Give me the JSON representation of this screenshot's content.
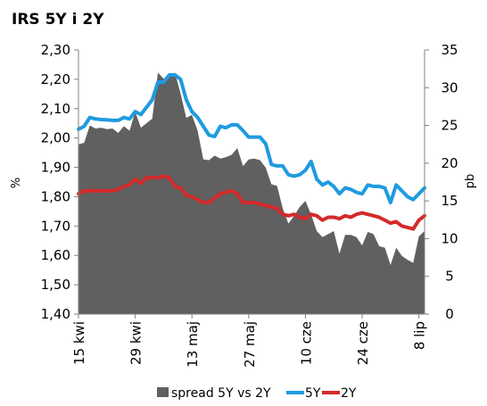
{
  "chart_data": {
    "type": "area+line",
    "title": "IRS 5Y i 2Y",
    "ylabel": "%",
    "y2label": "pb",
    "ylim": [
      1.4,
      2.3
    ],
    "y2lim": [
      0,
      35
    ],
    "yticks": [
      "2,30",
      "2,20",
      "2,10",
      "2,00",
      "1,90",
      "1,80",
      "1,70",
      "1,60",
      "1,50",
      "1,40"
    ],
    "y2ticks": [
      "35",
      "30",
      "25",
      "20",
      "15",
      "10",
      "5",
      "0"
    ],
    "xticks": [
      "15 kwi",
      "29 kwi",
      "13 maj",
      "27 maj",
      "10 cze",
      "24 cze",
      "8 lip"
    ],
    "xtick_index": [
      0,
      10,
      20,
      30,
      40,
      50,
      60
    ],
    "grid": false,
    "legend_position": "bottom",
    "series": [
      {
        "name": "spread 5Y vs 2Y",
        "type": "area",
        "axis": "right",
        "color": "#606060",
        "values": [
          22.5,
          22.7,
          25.0,
          24.6,
          24.7,
          24.5,
          24.6,
          24.0,
          24.9,
          24.3,
          26.8,
          24.7,
          25.3,
          25.9,
          32.0,
          31.2,
          31.6,
          32.0,
          29.2,
          26.0,
          26.4,
          24.3,
          20.5,
          20.4,
          21.0,
          20.6,
          20.8,
          21.1,
          22.0,
          19.6,
          20.5,
          20.6,
          20.4,
          19.4,
          17.2,
          17.0,
          14.0,
          12.0,
          13.0,
          14.2,
          15.0,
          13.2,
          11.0,
          10.2,
          10.6,
          11.0,
          8.0,
          10.5,
          10.5,
          10.2,
          9.1,
          10.9,
          10.6,
          9.0,
          8.8,
          6.5,
          8.8,
          7.7,
          7.2,
          6.8,
          10.3,
          11.0
        ]
      },
      {
        "name": "5Y",
        "type": "line",
        "axis": "left",
        "color": "#1f9be0",
        "values": [
          2.03,
          2.04,
          2.07,
          2.065,
          2.063,
          2.062,
          2.06,
          2.06,
          2.07,
          2.065,
          2.09,
          2.08,
          2.105,
          2.13,
          2.19,
          2.19,
          2.215,
          2.215,
          2.2,
          2.13,
          2.09,
          2.07,
          2.04,
          2.01,
          2.005,
          2.04,
          2.035,
          2.045,
          2.045,
          2.025,
          2.003,
          2.003,
          2.003,
          1.98,
          1.91,
          1.905,
          1.905,
          1.875,
          1.87,
          1.875,
          1.89,
          1.92,
          1.86,
          1.84,
          1.85,
          1.835,
          1.81,
          1.83,
          1.825,
          1.815,
          1.81,
          1.84,
          1.835,
          1.835,
          1.83,
          1.78,
          1.84,
          1.82,
          1.8,
          1.79,
          1.81,
          1.83
        ]
      },
      {
        "name": "2Y",
        "type": "line",
        "axis": "left",
        "color": "#d42a2a",
        "values": [
          1.81,
          1.82,
          1.82,
          1.82,
          1.82,
          1.82,
          1.82,
          1.825,
          1.835,
          1.84,
          1.86,
          1.845,
          1.865,
          1.865,
          1.865,
          1.87,
          1.865,
          1.835,
          1.83,
          1.805,
          1.8,
          1.79,
          1.78,
          1.78,
          1.795,
          1.81,
          1.815,
          1.82,
          1.81,
          1.78,
          1.78,
          1.78,
          1.775,
          1.77,
          1.765,
          1.76,
          1.74,
          1.735,
          1.74,
          1.73,
          1.725,
          1.74,
          1.735,
          1.72,
          1.73,
          1.73,
          1.725,
          1.735,
          1.73,
          1.74,
          1.745,
          1.74,
          1.735,
          1.73,
          1.72,
          1.71,
          1.715,
          1.7,
          1.695,
          1.69,
          1.72,
          1.735
        ]
      }
    ]
  }
}
